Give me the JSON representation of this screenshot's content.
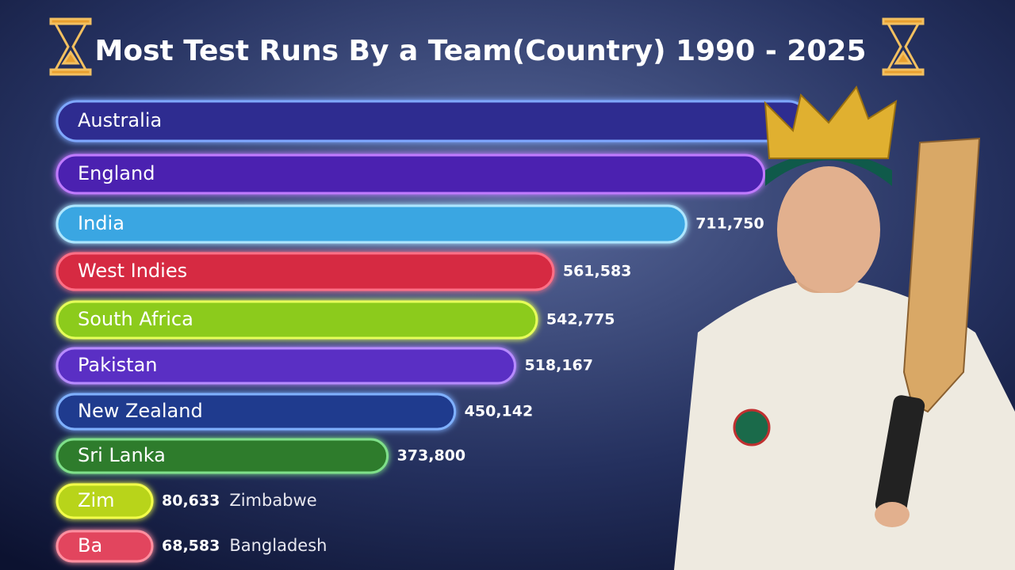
{
  "chart_data": {
    "type": "bar",
    "orientation": "horizontal",
    "title": "Most Test Runs By a Team(Country) 1990 - 2025",
    "categories": [
      "Australia",
      "England",
      "India",
      "West Indies",
      "South Africa",
      "Pakistan",
      "New Zealand",
      "Sri Lanka",
      "Zimbabwe",
      "Bangladesh"
    ],
    "bar_labels": [
      "Australia",
      "England",
      "India",
      "West Indies",
      "South Africa",
      "Pakistan",
      "New Zealand",
      "Sri Lanka",
      "Zim",
      "Ba"
    ],
    "values": [
      850000,
      800000,
      711750,
      561583,
      542775,
      518167,
      450142,
      373800,
      80633,
      68583
    ],
    "value_labels": [
      null,
      null,
      "711,750",
      "561,583",
      "542,775",
      "518,167",
      "450,142",
      "373,800",
      "80,633",
      "68,583"
    ],
    "colors": [
      "#2e2c90",
      "#4b21b0",
      "#3aa6e2",
      "#d62a42",
      "#8ccb1c",
      "#5a2fc4",
      "#1f3b8e",
      "#2e7c2c",
      "#b8d41a",
      "#e2455e"
    ],
    "glow_colors": [
      "#7fa8ff",
      "#c07bff",
      "#aee6ff",
      "#ff6f86",
      "#e6ff5a",
      "#b78bff",
      "#7fb0ff",
      "#7fe08a",
      "#f3ff4a",
      "#ff8fa0"
    ],
    "xlim": [
      0,
      900000
    ]
  }
}
